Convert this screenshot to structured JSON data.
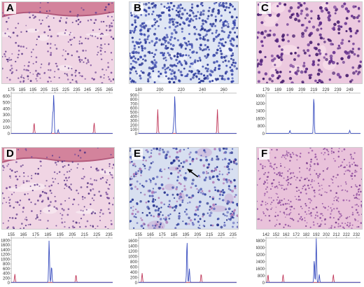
{
  "panels": [
    {
      "id": "A",
      "letter": "A",
      "stain": "he-dermal"
    },
    {
      "id": "B",
      "letter": "B",
      "stain": "blue-lymph"
    },
    {
      "id": "C",
      "letter": "C",
      "stain": "he-infiltrate"
    },
    {
      "id": "D",
      "letter": "D",
      "stain": "he-dermal"
    },
    {
      "id": "E",
      "letter": "E",
      "stain": "blue-mixed",
      "annotation": "arrow"
    },
    {
      "id": "F",
      "letter": "F",
      "stain": "he-diffuse"
    }
  ],
  "chart_data": [
    {
      "panel": "A",
      "type": "line",
      "x_ticks": [
        "175",
        "185",
        "195",
        "205",
        "215",
        "225",
        "235",
        "245",
        "255",
        "265"
      ],
      "x_range": [
        175,
        268
      ],
      "y_ticks": [
        "0",
        "100",
        "200",
        "300",
        "400",
        "500",
        "600"
      ],
      "ylim": [
        0,
        650
      ],
      "series": [
        {
          "color": "#c0395b",
          "peaks": [
            {
              "x": 196,
              "y": 170
            },
            {
              "x": 251,
              "y": 170
            }
          ]
        },
        {
          "color": "#3b4fc0",
          "peaks": [
            {
              "x": 214,
              "y": 620
            },
            {
              "x": 213,
              "y": 300
            },
            {
              "x": 218,
              "y": 60
            }
          ]
        }
      ]
    },
    {
      "panel": "B",
      "type": "line",
      "x_ticks": [
        "180",
        "200",
        "220",
        "240",
        "260"
      ],
      "x_range": [
        180,
        272
      ],
      "y_ticks": [
        "0",
        "100",
        "200",
        "300",
        "400",
        "500",
        "600",
        "700",
        "800",
        "900"
      ],
      "ylim": [
        0,
        950
      ],
      "series": [
        {
          "color": "#c0395b",
          "peaks": [
            {
              "x": 198,
              "y": 560
            },
            {
              "x": 254,
              "y": 560
            }
          ]
        },
        {
          "color": "#3b4fc0",
          "peaks": [
            {
              "x": 214,
              "y": 900
            },
            {
              "x": 213,
              "y": 250
            }
          ]
        }
      ]
    },
    {
      "panel": "C",
      "type": "line",
      "x_ticks": [
        "179",
        "189",
        "199",
        "209",
        "219",
        "229",
        "239",
        "249"
      ],
      "x_range": [
        179,
        258
      ],
      "y_ticks": [
        "0",
        "800",
        "1600",
        "2400",
        "3200",
        "4000"
      ],
      "ylim": [
        0,
        4300
      ],
      "series": [
        {
          "color": "#3b4fc0",
          "peaks": [
            {
              "x": 219,
              "y": 4000
            },
            {
              "x": 199,
              "y": 300
            },
            {
              "x": 249,
              "y": 300
            }
          ]
        }
      ]
    },
    {
      "panel": "D",
      "type": "line",
      "x_ticks": [
        "155",
        "165",
        "175",
        "185",
        "195",
        "205",
        "215",
        "225",
        "235"
      ],
      "x_range": [
        155,
        238
      ],
      "y_ticks": [
        "0",
        "200",
        "400",
        "600",
        "800",
        "1000",
        "1200",
        "1400",
        "1600",
        "1800"
      ],
      "ylim": [
        0,
        1900
      ],
      "series": [
        {
          "color": "#c0395b",
          "peaks": [
            {
              "x": 158,
              "y": 350
            },
            {
              "x": 208,
              "y": 330
            }
          ]
        },
        {
          "color": "#3b4fc0",
          "peaks": [
            {
              "x": 186,
              "y": 1800
            },
            {
              "x": 188,
              "y": 700
            }
          ]
        }
      ]
    },
    {
      "panel": "E",
      "type": "line",
      "x_ticks": [
        "155",
        "165",
        "175",
        "185",
        "195",
        "205",
        "215",
        "225",
        "235"
      ],
      "x_range": [
        155,
        238
      ],
      "y_ticks": [
        "0",
        "200",
        "400",
        "600",
        "800",
        "1000",
        "1200",
        "1400",
        "1600"
      ],
      "ylim": [
        0,
        1700
      ],
      "series": [
        {
          "color": "#c0395b",
          "peaks": [
            {
              "x": 158,
              "y": 350
            },
            {
              "x": 208,
              "y": 330
            }
          ]
        },
        {
          "color": "#3b4fc0",
          "peaks": [
            {
              "x": 196,
              "y": 1600
            },
            {
              "x": 198,
              "y": 520
            }
          ]
        }
      ]
    },
    {
      "panel": "F",
      "type": "line",
      "x_ticks": [
        "142",
        "152",
        "162",
        "172",
        "182",
        "192",
        "202",
        "212",
        "222",
        "232"
      ],
      "x_range": [
        142,
        236
      ],
      "y_ticks": [
        "0",
        "800",
        "1600",
        "2400",
        "3200",
        "4000",
        "4800"
      ],
      "ylim": [
        0,
        5100
      ],
      "series": [
        {
          "color": "#c0395b",
          "peaks": [
            {
              "x": 144,
              "y": 900
            },
            {
              "x": 159,
              "y": 900
            },
            {
              "x": 209,
              "y": 900
            }
          ]
        },
        {
          "color": "#3b4fc0",
          "peaks": [
            {
              "x": 192,
              "y": 5000
            },
            {
              "x": 190,
              "y": 2600
            },
            {
              "x": 195,
              "y": 900
            }
          ]
        }
      ]
    }
  ]
}
